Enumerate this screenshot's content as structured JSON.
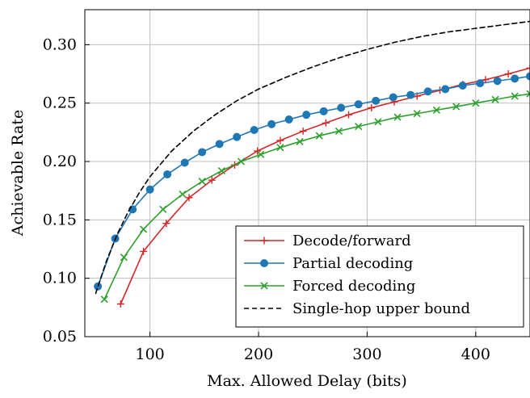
{
  "chart_data": {
    "type": "line",
    "title": "",
    "xlabel": "Max. Allowed Delay (bits)",
    "ylabel": "Achievable Rate",
    "xlim": [
      40,
      450
    ],
    "ylim": [
      0.05,
      0.33
    ],
    "xticks": [
      100,
      200,
      300,
      400
    ],
    "yticks": [
      0.05,
      0.1,
      0.15,
      0.2,
      0.25,
      0.3
    ],
    "xtick_labels": [
      "100",
      "200",
      "300",
      "400"
    ],
    "ytick_labels": [
      "0.05",
      "0.10",
      "0.15",
      "0.20",
      "0.25",
      "0.30"
    ],
    "grid": true,
    "legend_position": "lower-right",
    "series": [
      {
        "name": "Decode/forward",
        "color": "#d62728",
        "marker": "plus",
        "dash": "solid",
        "x": [
          73,
          94,
          115,
          136,
          157,
          178,
          199,
          220,
          241,
          262,
          283,
          304,
          325,
          346,
          367,
          388,
          409,
          430,
          450
        ],
        "y": [
          0.078,
          0.123,
          0.147,
          0.169,
          0.184,
          0.197,
          0.209,
          0.218,
          0.226,
          0.233,
          0.24,
          0.246,
          0.251,
          0.256,
          0.261,
          0.266,
          0.27,
          0.275,
          0.28
        ]
      },
      {
        "name": "Partial decoding",
        "color": "#1f77b4",
        "marker": "circle",
        "dash": "solid",
        "x": [
          52,
          68,
          84,
          100,
          116,
          132,
          148,
          164,
          180,
          196,
          212,
          228,
          244,
          260,
          276,
          292,
          308,
          324,
          340,
          356,
          372,
          388,
          404,
          420,
          436,
          450
        ],
        "y": [
          0.093,
          0.134,
          0.159,
          0.176,
          0.189,
          0.199,
          0.208,
          0.215,
          0.221,
          0.227,
          0.232,
          0.236,
          0.24,
          0.243,
          0.246,
          0.249,
          0.252,
          0.255,
          0.257,
          0.26,
          0.262,
          0.265,
          0.267,
          0.269,
          0.271,
          0.273
        ]
      },
      {
        "name": "Forced decoding",
        "color": "#2ca02c",
        "marker": "x",
        "dash": "solid",
        "x": [
          58,
          76,
          94,
          112,
          130,
          148,
          166,
          184,
          202,
          220,
          238,
          256,
          274,
          292,
          310,
          328,
          346,
          364,
          382,
          400,
          418,
          436,
          450
        ],
        "y": [
          0.082,
          0.118,
          0.142,
          0.159,
          0.172,
          0.183,
          0.192,
          0.2,
          0.206,
          0.212,
          0.217,
          0.222,
          0.226,
          0.23,
          0.234,
          0.238,
          0.241,
          0.244,
          0.247,
          0.25,
          0.253,
          0.256,
          0.258
        ]
      },
      {
        "name": "Single-hop upper bound",
        "color": "#000000",
        "marker": "none",
        "dash": "dashed",
        "x": [
          50,
          60,
          70,
          80,
          90,
          100,
          120,
          140,
          160,
          180,
          200,
          225,
          250,
          275,
          300,
          325,
          350,
          375,
          400,
          425,
          450
        ],
        "y": [
          0.087,
          0.115,
          0.138,
          0.157,
          0.173,
          0.187,
          0.209,
          0.226,
          0.24,
          0.252,
          0.262,
          0.272,
          0.281,
          0.289,
          0.296,
          0.302,
          0.307,
          0.311,
          0.314,
          0.317,
          0.32
        ]
      }
    ]
  }
}
